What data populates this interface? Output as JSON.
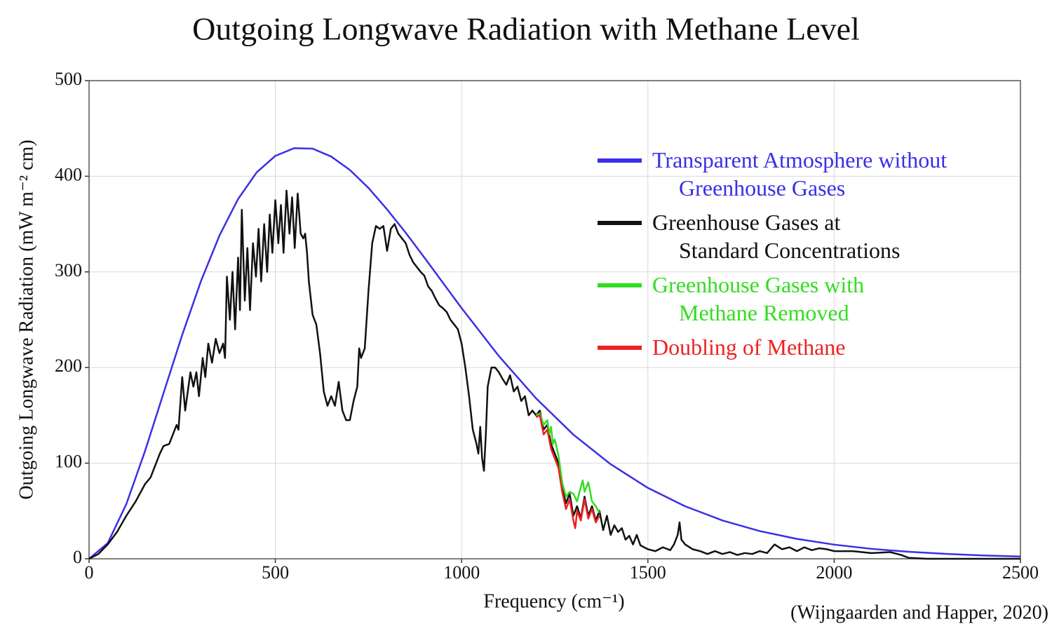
{
  "chart_data": {
    "type": "line",
    "title": "Outgoing Longwave Radiation with Methane Level",
    "xlabel": "Frequency (cm⁻¹)",
    "ylabel": "Outgoing Longwave Radiation (mW m⁻² cm)",
    "source": "(Wijngaarden and Happer, 2020)",
    "xlim": [
      0,
      2500
    ],
    "ylim": [
      0,
      500
    ],
    "xticks": [
      0,
      500,
      1000,
      1500,
      2000,
      2500
    ],
    "yticks": [
      0,
      100,
      200,
      300,
      400,
      500
    ],
    "grid": true,
    "legend": "upper right",
    "series": [
      {
        "name": "Transparent Atmosphere without\nGreenhouse Gases",
        "color": "#3b2fe6",
        "x": [
          0,
          50,
          100,
          150,
          200,
          250,
          300,
          350,
          400,
          450,
          500,
          550,
          600,
          650,
          700,
          750,
          800,
          850,
          900,
          950,
          1000,
          1100,
          1200,
          1300,
          1400,
          1500,
          1600,
          1700,
          1800,
          1900,
          2000,
          2100,
          2200,
          2300,
          2400,
          2500
        ],
        "values": [
          0,
          16.3,
          57.2,
          112.4,
          173.4,
          234.1,
          290,
          338,
          376.2,
          404.1,
          421.3,
          429.3,
          428.9,
          420.6,
          406.6,
          387.8,
          365.3,
          340.9,
          315,
          288.5,
          262.1,
          212,
          167.7,
          129.8,
          98.9,
          74.1,
          54.9,
          40.1,
          29,
          20.8,
          14.8,
          10.4,
          7.3,
          5.1,
          3.5,
          2.4
        ]
      },
      {
        "name": "Greenhouse Gases at\nStandard Concentrations",
        "color": "#111111",
        "x": [
          0,
          25,
          50,
          75,
          100,
          125,
          150,
          165,
          175,
          190,
          200,
          215,
          225,
          235,
          240,
          250,
          258,
          265,
          272,
          280,
          288,
          295,
          305,
          312,
          320,
          330,
          340,
          350,
          360,
          365,
          370,
          378,
          385,
          392,
          400,
          405,
          410,
          418,
          425,
          432,
          440,
          448,
          455,
          462,
          470,
          478,
          485,
          492,
          500,
          508,
          515,
          522,
          530,
          538,
          545,
          552,
          560,
          568,
          575,
          580,
          585,
          590,
          600,
          610,
          620,
          630,
          640,
          650,
          660,
          670,
          680,
          690,
          700,
          710,
          720,
          725,
          730,
          740,
          750,
          760,
          770,
          780,
          790,
          800,
          810,
          820,
          830,
          840,
          850,
          860,
          870,
          880,
          890,
          900,
          910,
          920,
          930,
          940,
          950,
          960,
          970,
          980,
          990,
          1000,
          1010,
          1020,
          1030,
          1040,
          1045,
          1050,
          1055,
          1060,
          1065,
          1070,
          1080,
          1090,
          1100,
          1110,
          1120,
          1130,
          1140,
          1150,
          1160,
          1170,
          1180,
          1190,
          1200,
          1210,
          1220,
          1230,
          1240,
          1250,
          1260,
          1270,
          1280,
          1290,
          1300,
          1310,
          1320,
          1330,
          1340,
          1350,
          1360,
          1370,
          1380,
          1390,
          1400,
          1410,
          1420,
          1430,
          1440,
          1450,
          1460,
          1470,
          1480,
          1490,
          1500,
          1520,
          1540,
          1560,
          1570,
          1580,
          1585,
          1590,
          1600,
          1620,
          1640,
          1660,
          1680,
          1700,
          1720,
          1740,
          1760,
          1780,
          1800,
          1820,
          1840,
          1860,
          1880,
          1900,
          1920,
          1940,
          1960,
          1980,
          2000,
          2050,
          2100,
          2150,
          2180,
          2200,
          2250,
          2300,
          2400,
          2500
        ],
        "values": [
          0,
          5,
          15,
          28,
          45,
          60,
          78,
          85,
          95,
          110,
          118,
          120,
          130,
          140,
          135,
          190,
          155,
          175,
          195,
          180,
          195,
          170,
          210,
          190,
          225,
          205,
          230,
          215,
          225,
          210,
          295,
          250,
          300,
          240,
          315,
          260,
          365,
          270,
          325,
          260,
          330,
          295,
          345,
          290,
          350,
          300,
          360,
          320,
          375,
          330,
          370,
          320,
          385,
          340,
          378,
          325,
          382,
          340,
          335,
          340,
          320,
          290,
          255,
          245,
          215,
          175,
          160,
          170,
          160,
          185,
          155,
          145,
          145,
          165,
          180,
          220,
          210,
          220,
          280,
          330,
          348,
          345,
          348,
          322,
          345,
          350,
          340,
          335,
          330,
          318,
          310,
          305,
          300,
          296,
          285,
          280,
          272,
          265,
          262,
          258,
          250,
          245,
          240,
          225,
          200,
          170,
          135,
          120,
          110,
          138,
          105,
          92,
          130,
          180,
          200,
          200,
          195,
          188,
          182,
          192,
          175,
          180,
          165,
          170,
          150,
          155,
          150,
          155,
          135,
          140,
          120,
          110,
          100,
          75,
          58,
          68,
          45,
          55,
          42,
          65,
          45,
          55,
          40,
          50,
          30,
          45,
          25,
          35,
          28,
          32,
          20,
          24,
          15,
          25,
          14,
          12,
          10,
          8,
          12,
          9,
          15,
          25,
          38,
          20,
          15,
          10,
          8,
          5,
          8,
          5,
          7,
          4,
          6,
          5,
          8,
          6,
          15,
          10,
          12,
          8,
          12,
          9,
          11,
          10,
          8,
          8,
          6,
          7,
          4,
          1,
          0,
          0,
          0,
          0
        ]
      },
      {
        "name": "Greenhouse Gases with\nMethane Removed",
        "color": "#33dd22",
        "x": [
          1200,
          1210,
          1220,
          1230,
          1235,
          1240,
          1245,
          1250,
          1260,
          1270,
          1280,
          1290,
          1300,
          1310,
          1320,
          1325,
          1330,
          1340,
          1350,
          1360,
          1370
        ],
        "values": [
          150,
          152,
          140,
          145,
          130,
          138,
          120,
          125,
          108,
          80,
          65,
          70,
          68,
          60,
          75,
          82,
          70,
          80,
          60,
          55,
          48
        ]
      },
      {
        "name": "Doubling of Methane",
        "color": "#ee2222",
        "x": [
          1200,
          1210,
          1220,
          1230,
          1240,
          1250,
          1260,
          1270,
          1280,
          1290,
          1300,
          1305,
          1310,
          1320,
          1330,
          1340,
          1350,
          1360,
          1370
        ],
        "values": [
          148,
          150,
          130,
          135,
          115,
          105,
          95,
          70,
          52,
          62,
          40,
          32,
          50,
          40,
          62,
          42,
          52,
          38,
          45
        ]
      }
    ]
  }
}
